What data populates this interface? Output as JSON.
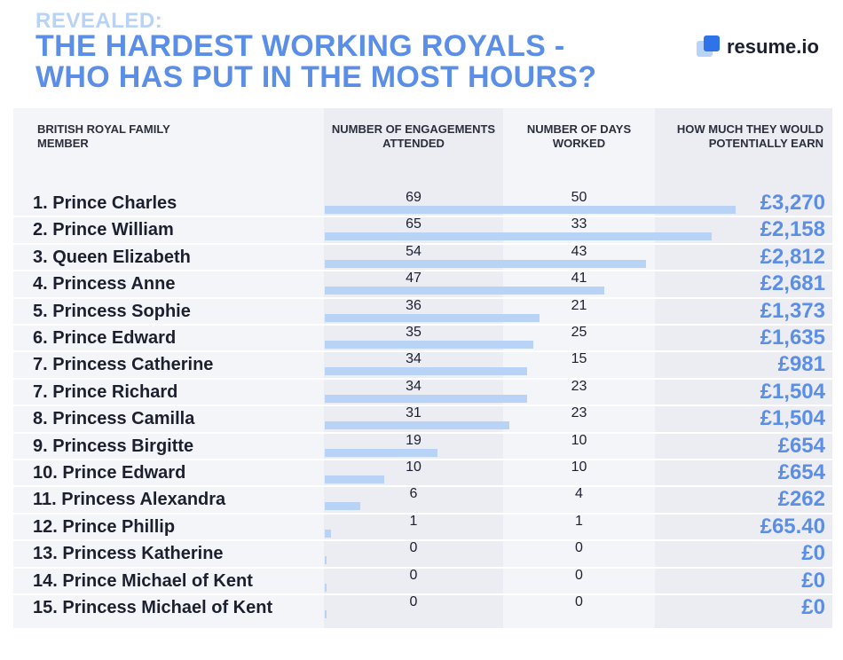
{
  "header": {
    "kicker": "REVEALED:",
    "title_line1": "THE HARDEST WORKING ROYALS -",
    "title_line2": "WHO HAS PUT IN THE MOST HOURS?"
  },
  "brand": {
    "name": "resume.io",
    "icon": "resume-io-logo-icon"
  },
  "colors": {
    "title": "#5b8ee6",
    "kicker": "#b9d3f6",
    "bar": "#b9d3f6",
    "earn": "#5b8ee6"
  },
  "table": {
    "headers": [
      "BRITISH ROYAL FAMILY MEMBER",
      "NUMBER OF ENGAGEMENTS ATTENDED",
      "NUMBER OF DAYS WORKED",
      "HOW MUCH THEY WOULD POTENTIALLY EARN"
    ]
  },
  "chart_data": {
    "type": "bar",
    "orientation": "horizontal",
    "categories": [
      "1. Prince Charles",
      "2. Prince William",
      "3. Queen Elizabeth",
      "4. Princess Anne",
      "5. Princess Sophie",
      "6. Prince Edward",
      "7. Princess Catherine",
      "7. Prince Richard",
      "8. Princess Camilla",
      "9. Princess Birgitte",
      "10. Prince Edward",
      "11. Princess Alexandra",
      "12. Prince Phillip",
      "13. Princess Katherine",
      "14. Prince Michael of Kent",
      "15. Princess Michael of Kent"
    ],
    "series": [
      {
        "name": "NUMBER OF ENGAGEMENTS ATTENDED",
        "values": [
          69,
          65,
          54,
          47,
          36,
          35,
          34,
          34,
          31,
          19,
          10,
          6,
          1,
          0,
          0,
          0
        ]
      }
    ],
    "days_worked": [
      50,
      33,
      43,
      41,
      21,
      25,
      15,
      23,
      23,
      10,
      10,
      4,
      1,
      0,
      0,
      0
    ],
    "earnings": [
      "£3,270",
      "£2,158",
      "£2,812",
      "£2,681",
      "£1,373",
      "£1,635",
      "£981",
      "£1,504",
      "£1,504",
      "£654",
      "£654",
      "£262",
      "£65.40",
      "£0",
      "£0",
      "£0"
    ],
    "xlim": [
      0,
      69
    ],
    "grid": false,
    "legend": "none"
  }
}
